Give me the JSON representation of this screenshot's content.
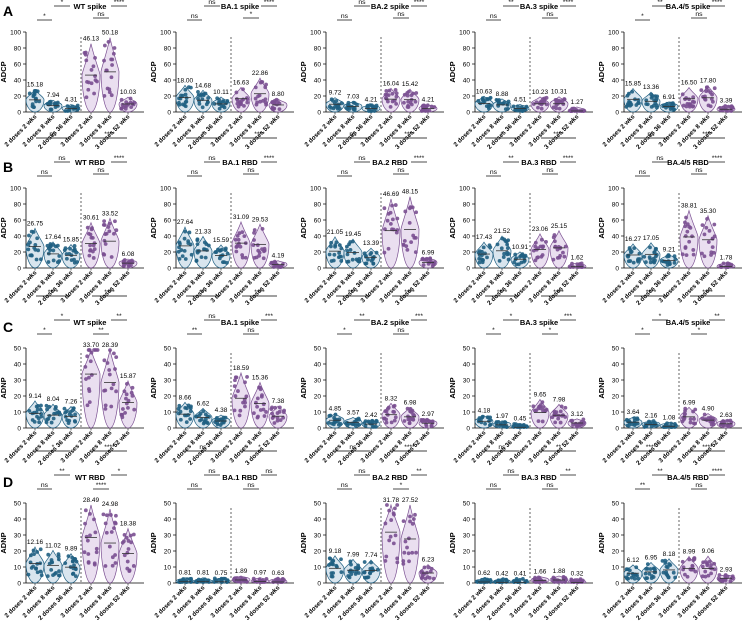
{
  "chart_data": {
    "type": "violin",
    "groups": [
      "2 doses 2 wks",
      "2 doses 8 wks",
      "2 doses 36 wks",
      "3 doses 2 wks",
      "3 doses 8 wks",
      "3 doses 52 wks"
    ],
    "colors": {
      "two_dose": "#1f5f82",
      "three_dose": "#7a4f91",
      "two_dose_fill": "#b9cfe0",
      "three_dose_fill": "#d8c4e4"
    },
    "rows": [
      {
        "letter": "A",
        "ylabel": "ADCP",
        "ylim": [
          0,
          100
        ],
        "ticks": [
          "0",
          "20",
          "40",
          "60",
          "80",
          "100"
        ],
        "panels": [
          {
            "title": "WT spike",
            "means": [
              15.18,
              7.94,
              4.31,
              46.13,
              50.18,
              10.03
            ],
            "mean_labels": [
              "15.18",
              "7.94",
              "4.31",
              "46.13",
              "50.18",
              "10.03"
            ],
            "sig": [
              "*",
              "*",
              "***",
              "ns",
              "****",
              "****"
            ]
          },
          {
            "title": "BA.1 spike",
            "means": [
              18.0,
              14.68,
              10.11,
              16.63,
              22.86,
              8.8
            ],
            "mean_labels": [
              "18.00",
              "14.68",
              "10.11",
              "16.63",
              "22.86",
              "8.80"
            ],
            "sig": [
              "ns",
              "ns",
              "**",
              "*",
              "****",
              "*"
            ]
          },
          {
            "title": "BA.2 spike",
            "means": [
              9.72,
              7.03,
              4.21,
              16.04,
              15.42,
              4.21
            ],
            "mean_labels": [
              "9.72",
              "7.03",
              "4.21",
              "16.04",
              "15.42",
              "4.21"
            ],
            "sig": [
              "ns",
              "ns",
              "***",
              "ns",
              "****",
              "****"
            ]
          },
          {
            "title": "BA.3 spike",
            "means": [
              10.63,
              8.88,
              4.51,
              10.23,
              10.31,
              1.27
            ],
            "mean_labels": [
              "10.63",
              "8.88",
              "4.51",
              "10.23",
              "10.31",
              "1.27"
            ],
            "sig": [
              "ns",
              "**",
              "****",
              "ns",
              "****",
              "****"
            ]
          },
          {
            "title": "BA.4/5 spike",
            "means": [
              15.85,
              13.36,
              6.91,
              16.5,
              17.8,
              3.39
            ],
            "mean_labels": [
              "15.85",
              "13.36",
              "6.91",
              "16.50",
              "17.80",
              "3.39"
            ],
            "sig": [
              "*",
              "**",
              "****",
              "ns",
              "****",
              "****"
            ]
          }
        ]
      },
      {
        "letter": "B",
        "ylabel": "ADCP",
        "ylim": [
          0,
          100
        ],
        "ticks": [
          "0",
          "20",
          "40",
          "60",
          "80",
          "100"
        ],
        "panels": [
          {
            "title": "WT RBD",
            "means": [
              26.75,
              17.64,
              15.85,
              30.61,
              33.52,
              6.08
            ],
            "mean_labels": [
              "26.75",
              "17.64",
              "15.85",
              "30.61",
              "33.52",
              "6.08"
            ],
            "sig": [
              "ns",
              "ns",
              "ns",
              "ns",
              "****",
              "****"
            ]
          },
          {
            "title": "BA.1 RBD",
            "means": [
              27.64,
              21.33,
              15.59,
              31.09,
              29.53,
              4.19
            ],
            "mean_labels": [
              "27.64",
              "21.33",
              "15.59",
              "31.09",
              "29.53",
              "4.19"
            ],
            "sig": [
              "ns",
              "ns",
              "*",
              "ns",
              "****",
              "****"
            ]
          },
          {
            "title": "BA.2 RBD",
            "means": [
              21.05,
              19.45,
              13.39,
              46.69,
              48.15,
              6.99
            ],
            "mean_labels": [
              "21.05",
              "19.45",
              "13.39",
              "46.69",
              "48.15",
              "6.99"
            ],
            "sig": [
              "ns",
              "ns",
              "ns",
              "ns",
              "****",
              "****"
            ]
          },
          {
            "title": "BA.3 RBD",
            "means": [
              17.43,
              21.52,
              10.91,
              23.06,
              25.15,
              1.62
            ],
            "mean_labels": [
              "17.43",
              "21.52",
              "10.91",
              "23.06",
              "25.15",
              "1.62"
            ],
            "sig": [
              "ns",
              "**",
              "*",
              "ns",
              "****",
              "****"
            ]
          },
          {
            "title": "BA.4/5 RBD",
            "means": [
              16.27,
              17.05,
              9.21,
              38.81,
              35.3,
              1.78
            ],
            "mean_labels": [
              "16.27",
              "17.05",
              "9.21",
              "38.81",
              "35.30",
              "1.78"
            ],
            "sig": [
              "ns",
              "ns",
              "ns",
              "ns",
              "****",
              "****"
            ]
          }
        ]
      },
      {
        "letter": "C",
        "ylabel": "ADNP",
        "ylim": [
          0,
          50
        ],
        "ticks": [
          "0",
          "10",
          "20",
          "30",
          "40",
          "50"
        ],
        "panels": [
          {
            "title": "WT spike",
            "means": [
              9.14,
              8.04,
              7.26,
              33.7,
              28.39,
              15.87
            ],
            "mean_labels": [
              "9.14",
              "8.04",
              "7.26",
              "33.70",
              "28.39",
              "15.87"
            ],
            "sig": [
              "*",
              "*",
              "****",
              "**",
              "**",
              "****"
            ]
          },
          {
            "title": "BA.1 spike",
            "means": [
              8.66,
              6.62,
              4.38,
              18.59,
              15.36,
              7.38
            ],
            "mean_labels": [
              "8.66",
              "6.62",
              "4.38",
              "18.59",
              "15.36",
              "7.38"
            ],
            "sig": [
              "**",
              "ns",
              "***",
              "ns",
              "***",
              "****"
            ]
          },
          {
            "title": "BA.2 spike",
            "means": [
              4.85,
              3.57,
              2.42,
              8.32,
              6.98,
              2.97
            ],
            "mean_labels": [
              "4.85",
              "3.57",
              "2.42",
              "8.32",
              "6.98",
              "2.97"
            ],
            "sig": [
              "*",
              "**",
              "****",
              "ns",
              "***",
              "****"
            ]
          },
          {
            "title": "BA.3 spike",
            "means": [
              4.18,
              1.97,
              0.45,
              9.65,
              7.98,
              3.12
            ],
            "mean_labels": [
              "4.18",
              "1.97",
              "0.45",
              "9.65",
              "7.98",
              "3.12"
            ],
            "sig": [
              "*",
              "*",
              "****",
              "*",
              "***",
              "****"
            ]
          },
          {
            "title": "BA.4/5 spike",
            "means": [
              3.64,
              2.16,
              1.08,
              6.99,
              4.9,
              2.63
            ],
            "mean_labels": [
              "3.64",
              "2.16",
              "1.08",
              "6.99",
              "4.90",
              "2.63"
            ],
            "sig": [
              "*",
              "*",
              "****",
              "*",
              "**",
              "****"
            ]
          }
        ]
      },
      {
        "letter": "D",
        "ylabel": "ADNP",
        "ylim": [
          0,
          50
        ],
        "ticks": [
          "0",
          "10",
          "20",
          "30",
          "40",
          "50"
        ],
        "panels": [
          {
            "title": "WT RBD",
            "means": [
              12.16,
              11.02,
              9.89,
              28.49,
              24.98,
              18.38
            ],
            "mean_labels": [
              "12.16",
              "11.02",
              "9.89",
              "28.49",
              "24.98",
              "18.38"
            ],
            "sig": [
              "ns",
              "**",
              "*",
              "****",
              "*",
              "****"
            ]
          },
          {
            "title": "BA.1  RBD",
            "means": [
              0.81,
              0.81,
              0.75,
              1.89,
              0.97,
              0.63
            ],
            "mean_labels": [
              "0.81",
              "0.81",
              "0.75",
              "1.89",
              "0.97",
              "0.63"
            ],
            "sig": [
              "ns",
              "ns",
              "ns",
              "ns",
              "ns",
              "*"
            ]
          },
          {
            "title": "BA.2 RBD",
            "means": [
              9.18,
              7.99,
              7.74,
              31.78,
              27.52,
              6.23
            ],
            "mean_labels": [
              "9.18",
              "7.99",
              "7.74",
              "31.78",
              "27.52",
              "6.23"
            ],
            "sig": [
              "ns",
              "ns",
              "ns",
              "*",
              "**",
              "****"
            ]
          },
          {
            "title": "BA.3 RBD",
            "means": [
              0.62,
              0.42,
              0.41,
              1.66,
              1.88,
              0.32
            ],
            "mean_labels": [
              "0.62",
              "0.42",
              "0.41",
              "1.66",
              "1.88",
              "0.32"
            ],
            "sig": [
              "ns",
              "ns",
              "ns",
              "ns",
              "**",
              "**"
            ]
          },
          {
            "title": "BA.4/5 RBD",
            "means": [
              6.12,
              6.95,
              8.18,
              8.99,
              9.06,
              2.93
            ],
            "mean_labels": [
              "6.12",
              "6.95",
              "8.18",
              "8.99",
              "9.06",
              "2.93"
            ],
            "sig": [
              "**",
              "**",
              "****",
              "ns",
              "****",
              "****"
            ]
          }
        ]
      }
    ]
  }
}
